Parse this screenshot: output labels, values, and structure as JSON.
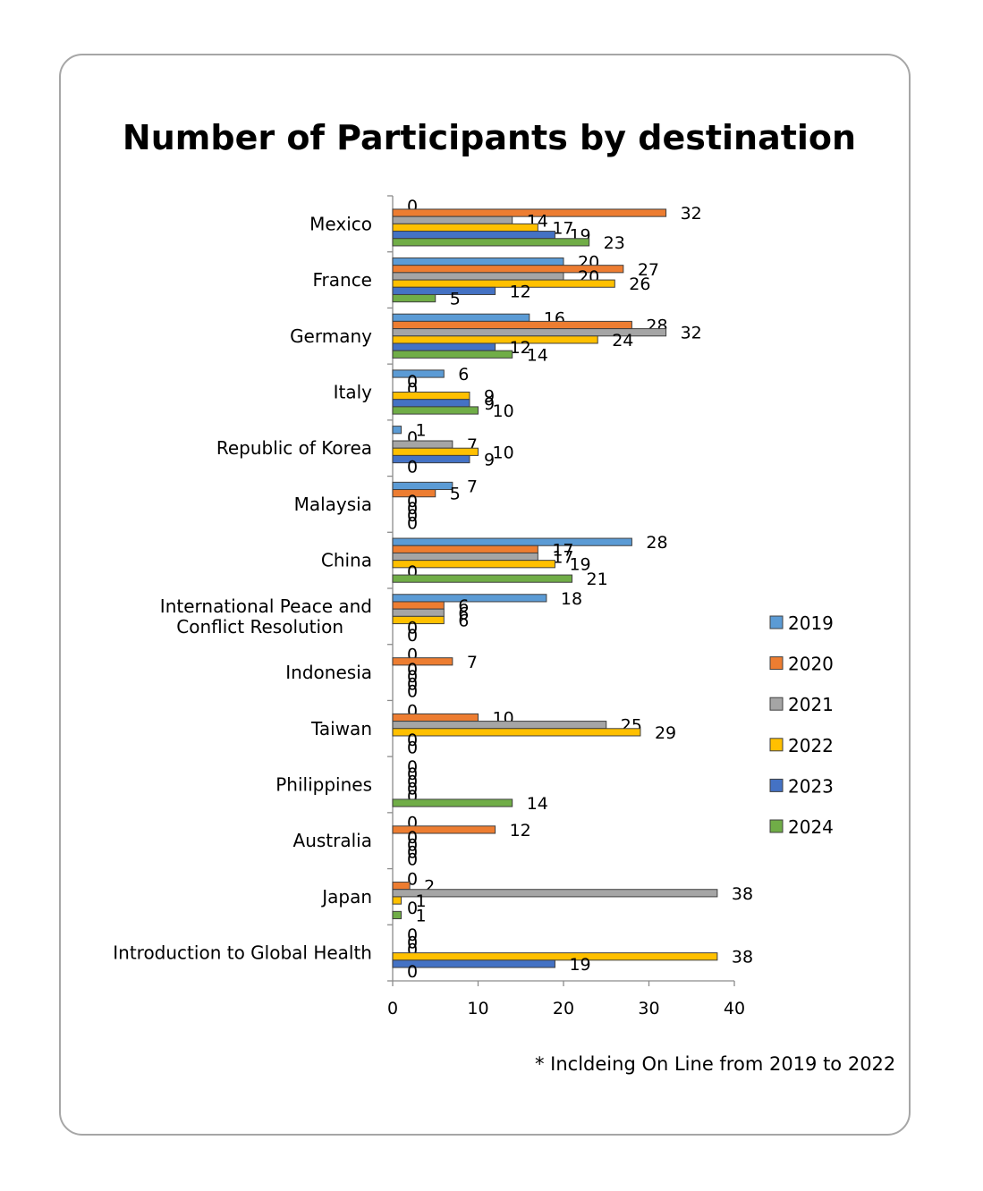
{
  "chart_data": {
    "type": "bar",
    "orientation": "horizontal",
    "title": "Number of Participants by destination",
    "footnote": "* Incldeing On Line from 2019 to 2022",
    "xlim": [
      0,
      40
    ],
    "xticks": [
      "0",
      "10",
      "20",
      "30",
      "40"
    ],
    "legend_position": "right",
    "grid": false,
    "categories": [
      [
        "Mexico"
      ],
      [
        "France"
      ],
      [
        "Germany"
      ],
      [
        "Italy"
      ],
      [
        "Republic of Korea"
      ],
      [
        "Malaysia"
      ],
      [
        "China"
      ],
      [
        "International Peace and",
        "Conflict Resolution"
      ],
      [
        "Indonesia"
      ],
      [
        "Taiwan"
      ],
      [
        "Philippines"
      ],
      [
        "Australia"
      ],
      [
        "Japan"
      ],
      [
        "Introduction to Global Health"
      ]
    ],
    "series": [
      {
        "name": "2019",
        "color": "#5b9bd5",
        "values": [
          0,
          20,
          16,
          6,
          1,
          7,
          28,
          18,
          0,
          0,
          0,
          0,
          0,
          0
        ]
      },
      {
        "name": "2020",
        "color": "#ed7d31",
        "values": [
          32,
          27,
          28,
          0,
          0,
          5,
          17,
          6,
          7,
          10,
          0,
          12,
          2,
          0
        ]
      },
      {
        "name": "2021",
        "color": "#a5a5a5",
        "values": [
          14,
          20,
          32,
          0,
          7,
          0,
          17,
          6,
          0,
          25,
          0,
          0,
          38,
          0
        ]
      },
      {
        "name": "2022",
        "color": "#ffc000",
        "values": [
          17,
          26,
          24,
          9,
          10,
          0,
          19,
          6,
          0,
          29,
          0,
          0,
          1,
          38
        ]
      },
      {
        "name": "2023",
        "color": "#4472c4",
        "values": [
          19,
          12,
          12,
          9,
          9,
          0,
          0,
          0,
          0,
          0,
          0,
          0,
          0,
          19
        ]
      },
      {
        "name": "2024",
        "color": "#70ad47",
        "values": [
          23,
          5,
          14,
          10,
          0,
          0,
          21,
          0,
          0,
          0,
          14,
          0,
          1,
          0
        ]
      }
    ]
  }
}
